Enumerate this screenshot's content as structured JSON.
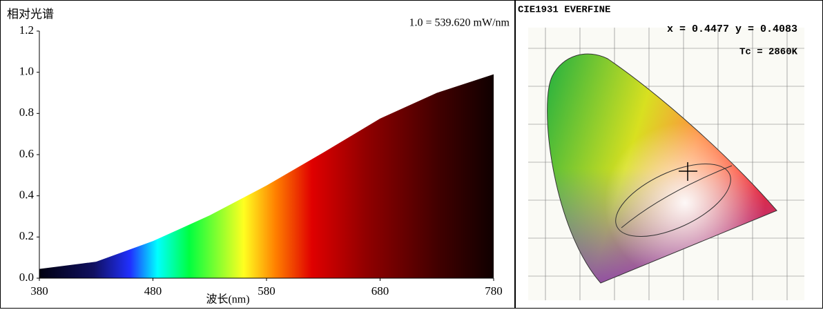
{
  "chart_data": {
    "type": "area",
    "title": "相对光谱",
    "annotation": "1.0 = 539.620 mW/nm",
    "x_label": "波长(nm)",
    "x": [
      380,
      430,
      480,
      530,
      580,
      630,
      680,
      730,
      780
    ],
    "values": [
      0.045,
      0.08,
      0.18,
      0.305,
      0.45,
      0.61,
      0.775,
      0.9,
      0.99
    ],
    "xlim": [
      380,
      780
    ],
    "xticks": [
      380,
      480,
      580,
      680,
      780
    ],
    "ylim": [
      0,
      1.2
    ],
    "yticks": [
      {
        "value": 0,
        "label": "0.0"
      },
      0.2,
      0.4,
      0.6,
      0.8,
      {
        "value": 1,
        "label": "1.0"
      },
      1.2
    ]
  },
  "cie_panel": {
    "title": "CIE1931 EVERFINE",
    "coordinates": "x = 0.4477 y = 0.4083",
    "cct": "Tc = 2860K"
  }
}
